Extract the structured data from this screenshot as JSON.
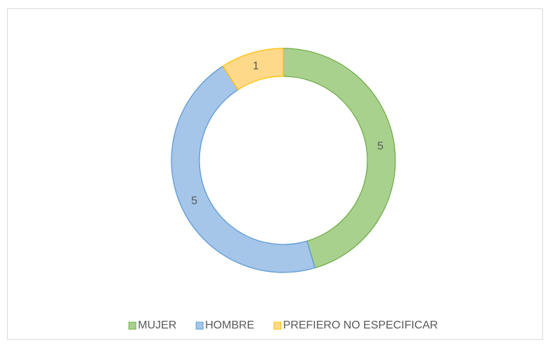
{
  "chart_data": {
    "type": "donut",
    "categories": [
      "MUJER",
      "HOMBRE",
      "PREFIERO NO ESPECIFICAR"
    ],
    "values": [
      5,
      5,
      1
    ],
    "colors": [
      "#a9d18e",
      "#a5c5e9",
      "#ffd98a"
    ],
    "edge_colors": [
      "#70ad47",
      "#5b9bd5",
      "#ffc000"
    ],
    "legend": "bottom"
  }
}
